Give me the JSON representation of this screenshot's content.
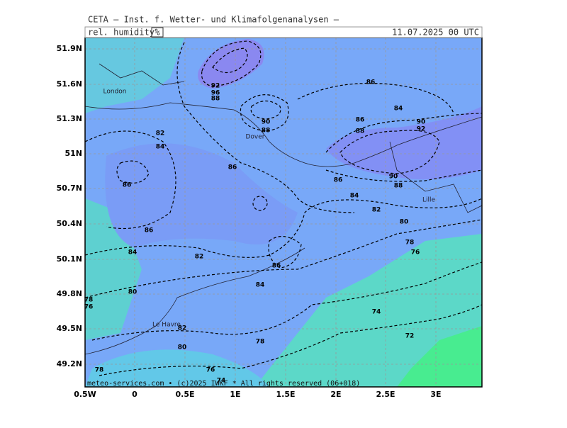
{
  "header": {
    "institute": "CETA — Inst. f. Wetter- und Klimafolgenanalysen —",
    "parameter": "rel. humidity",
    "unit": "%",
    "valid": "11.07.2025 00 UTC"
  },
  "axes": {
    "lat_labels": [
      "51.9N",
      "51.6N",
      "51.3N",
      "51N",
      "50.7N",
      "50.4N",
      "50.1N",
      "49.8N",
      "49.5N",
      "49.2N"
    ],
    "lon_labels": [
      "0.5W",
      "0",
      "0.5E",
      "1E",
      "1.5E",
      "2E",
      "2.5E",
      "3E"
    ]
  },
  "places": [
    "London",
    "Dover",
    "Lille",
    "Le Havre"
  ],
  "contour_labels": [
    92,
    96,
    88,
    86,
    84,
    90,
    88,
    86,
    88,
    90,
    92,
    82,
    84,
    86,
    86,
    90,
    88,
    86,
    84,
    82,
    80,
    86,
    78,
    76,
    84,
    82,
    86,
    84,
    80,
    78,
    76,
    74,
    82,
    72,
    78,
    80,
    76,
    78,
    74
  ],
  "footer": "meteo-services.com • (c)2025 IWKF * All rights reserved (06+018)"
}
